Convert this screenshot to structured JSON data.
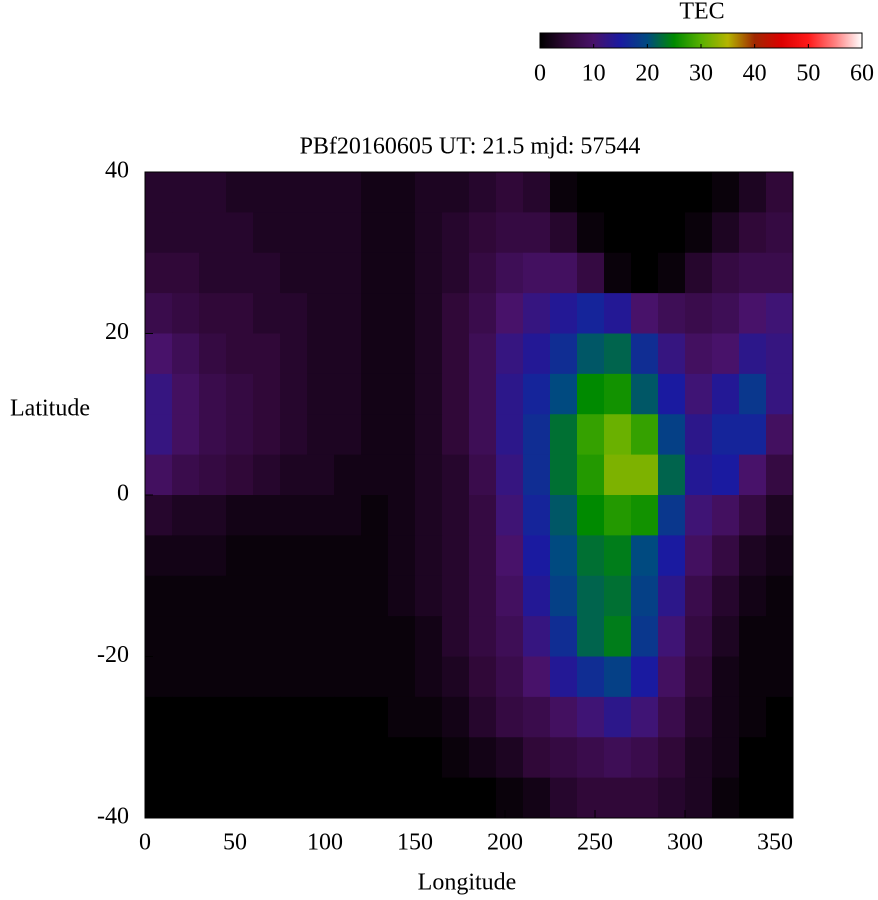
{
  "chart_data": {
    "type": "heatmap",
    "title": "PBf20160605  UT: 21.5  mjd: 57544",
    "xlabel": "Longitude",
    "ylabel": "Latitude",
    "colorbar_label": "TEC",
    "xlim": [
      0,
      360
    ],
    "xticks": [
      0,
      50,
      100,
      150,
      200,
      250,
      300,
      350
    ],
    "ylim": [
      -40,
      40
    ],
    "yticks": [
      -40,
      -20,
      0,
      20,
      40
    ],
    "zlim": [
      0,
      60
    ],
    "zticks": [
      0,
      10,
      20,
      30,
      40,
      50,
      60
    ],
    "colorscale": [
      [
        0,
        "#000000"
      ],
      [
        5,
        "#300838"
      ],
      [
        10,
        "#48126a"
      ],
      [
        15,
        "#1a1aa0"
      ],
      [
        20,
        "#004a80"
      ],
      [
        25,
        "#008a00"
      ],
      [
        30,
        "#58b000"
      ],
      [
        35,
        "#b4b400"
      ],
      [
        40,
        "#a02800"
      ],
      [
        45,
        "#dc0000"
      ],
      [
        50,
        "#ff1a1a"
      ],
      [
        55,
        "#ff8080"
      ],
      [
        60,
        "#ffffff"
      ]
    ],
    "x": [
      7.5,
      22.5,
      37.5,
      52.5,
      67.5,
      82.5,
      97.5,
      112.5,
      127.5,
      142.5,
      157.5,
      172.5,
      187.5,
      202.5,
      217.5,
      232.5,
      247.5,
      262.5,
      277.5,
      292.5,
      307.5,
      322.5,
      337.5,
      352.5
    ],
    "y": [
      37.5,
      32.5,
      27.5,
      22.5,
      17.5,
      12.5,
      7.5,
      2.5,
      -2.5,
      -7.5,
      -12.5,
      -17.5,
      -22.5,
      -27.5,
      -32.5,
      -37.5
    ],
    "z": [
      [
        4,
        4,
        4,
        3,
        3,
        3,
        3,
        3,
        2,
        2,
        3,
        3,
        4,
        5,
        4,
        1,
        0,
        0,
        0,
        0,
        0,
        1,
        3,
        5
      ],
      [
        4,
        4,
        4,
        4,
        3,
        3,
        3,
        3,
        2,
        2,
        3,
        4,
        5,
        6,
        6,
        4,
        1,
        0,
        0,
        0,
        1,
        3,
        5,
        6
      ],
      [
        5,
        5,
        4,
        4,
        4,
        3,
        3,
        3,
        2,
        2,
        3,
        4,
        6,
        8,
        9,
        9,
        6,
        1,
        0,
        1,
        4,
        6,
        7,
        7
      ],
      [
        7,
        6,
        5,
        5,
        4,
        4,
        3,
        3,
        2,
        2,
        3,
        5,
        7,
        10,
        12,
        14,
        16,
        14,
        10,
        8,
        7,
        8,
        10,
        11
      ],
      [
        10,
        8,
        6,
        5,
        5,
        4,
        3,
        3,
        2,
        2,
        3,
        5,
        8,
        12,
        14,
        17,
        21,
        22,
        17,
        12,
        9,
        10,
        13,
        12
      ],
      [
        12,
        9,
        7,
        6,
        5,
        4,
        3,
        3,
        2,
        2,
        3,
        5,
        8,
        13,
        16,
        20,
        25,
        26,
        21,
        15,
        11,
        14,
        18,
        12
      ],
      [
        12,
        9,
        7,
        6,
        5,
        4,
        3,
        3,
        2,
        2,
        3,
        5,
        8,
        13,
        17,
        23,
        28,
        31,
        28,
        19,
        13,
        16,
        16,
        9
      ],
      [
        9,
        7,
        6,
        5,
        4,
        3,
        3,
        2,
        2,
        2,
        3,
        4,
        7,
        12,
        17,
        23,
        27,
        32,
        32,
        22,
        14,
        15,
        10,
        6
      ],
      [
        4,
        3,
        3,
        2,
        2,
        2,
        2,
        2,
        1,
        2,
        3,
        4,
        6,
        11,
        16,
        21,
        25,
        27,
        26,
        18,
        11,
        9,
        6,
        3
      ],
      [
        2,
        2,
        2,
        1,
        1,
        1,
        1,
        1,
        1,
        2,
        3,
        4,
        6,
        10,
        15,
        20,
        23,
        24,
        20,
        15,
        9,
        6,
        3,
        2
      ],
      [
        1,
        1,
        1,
        1,
        1,
        1,
        1,
        1,
        1,
        2,
        3,
        4,
        6,
        9,
        14,
        19,
        22,
        23,
        19,
        13,
        7,
        4,
        2,
        1
      ],
      [
        1,
        1,
        1,
        1,
        1,
        1,
        1,
        1,
        1,
        1,
        2,
        4,
        6,
        8,
        12,
        17,
        22,
        24,
        18,
        11,
        6,
        3,
        1,
        1
      ],
      [
        1,
        1,
        1,
        1,
        1,
        1,
        1,
        1,
        1,
        1,
        2,
        3,
        5,
        7,
        10,
        14,
        17,
        19,
        15,
        9,
        5,
        2,
        1,
        1
      ],
      [
        0,
        0,
        0,
        0,
        0,
        0,
        0,
        0,
        0,
        1,
        1,
        2,
        4,
        6,
        7,
        9,
        11,
        13,
        11,
        7,
        4,
        2,
        1,
        0
      ],
      [
        0,
        0,
        0,
        0,
        0,
        0,
        0,
        0,
        0,
        0,
        0,
        1,
        2,
        3,
        5,
        6,
        7,
        8,
        7,
        5,
        3,
        2,
        0,
        0
      ],
      [
        0,
        0,
        0,
        0,
        0,
        0,
        0,
        0,
        0,
        0,
        0,
        0,
        0,
        1,
        2,
        4,
        5,
        5,
        5,
        4,
        3,
        1,
        0,
        0
      ]
    ]
  }
}
